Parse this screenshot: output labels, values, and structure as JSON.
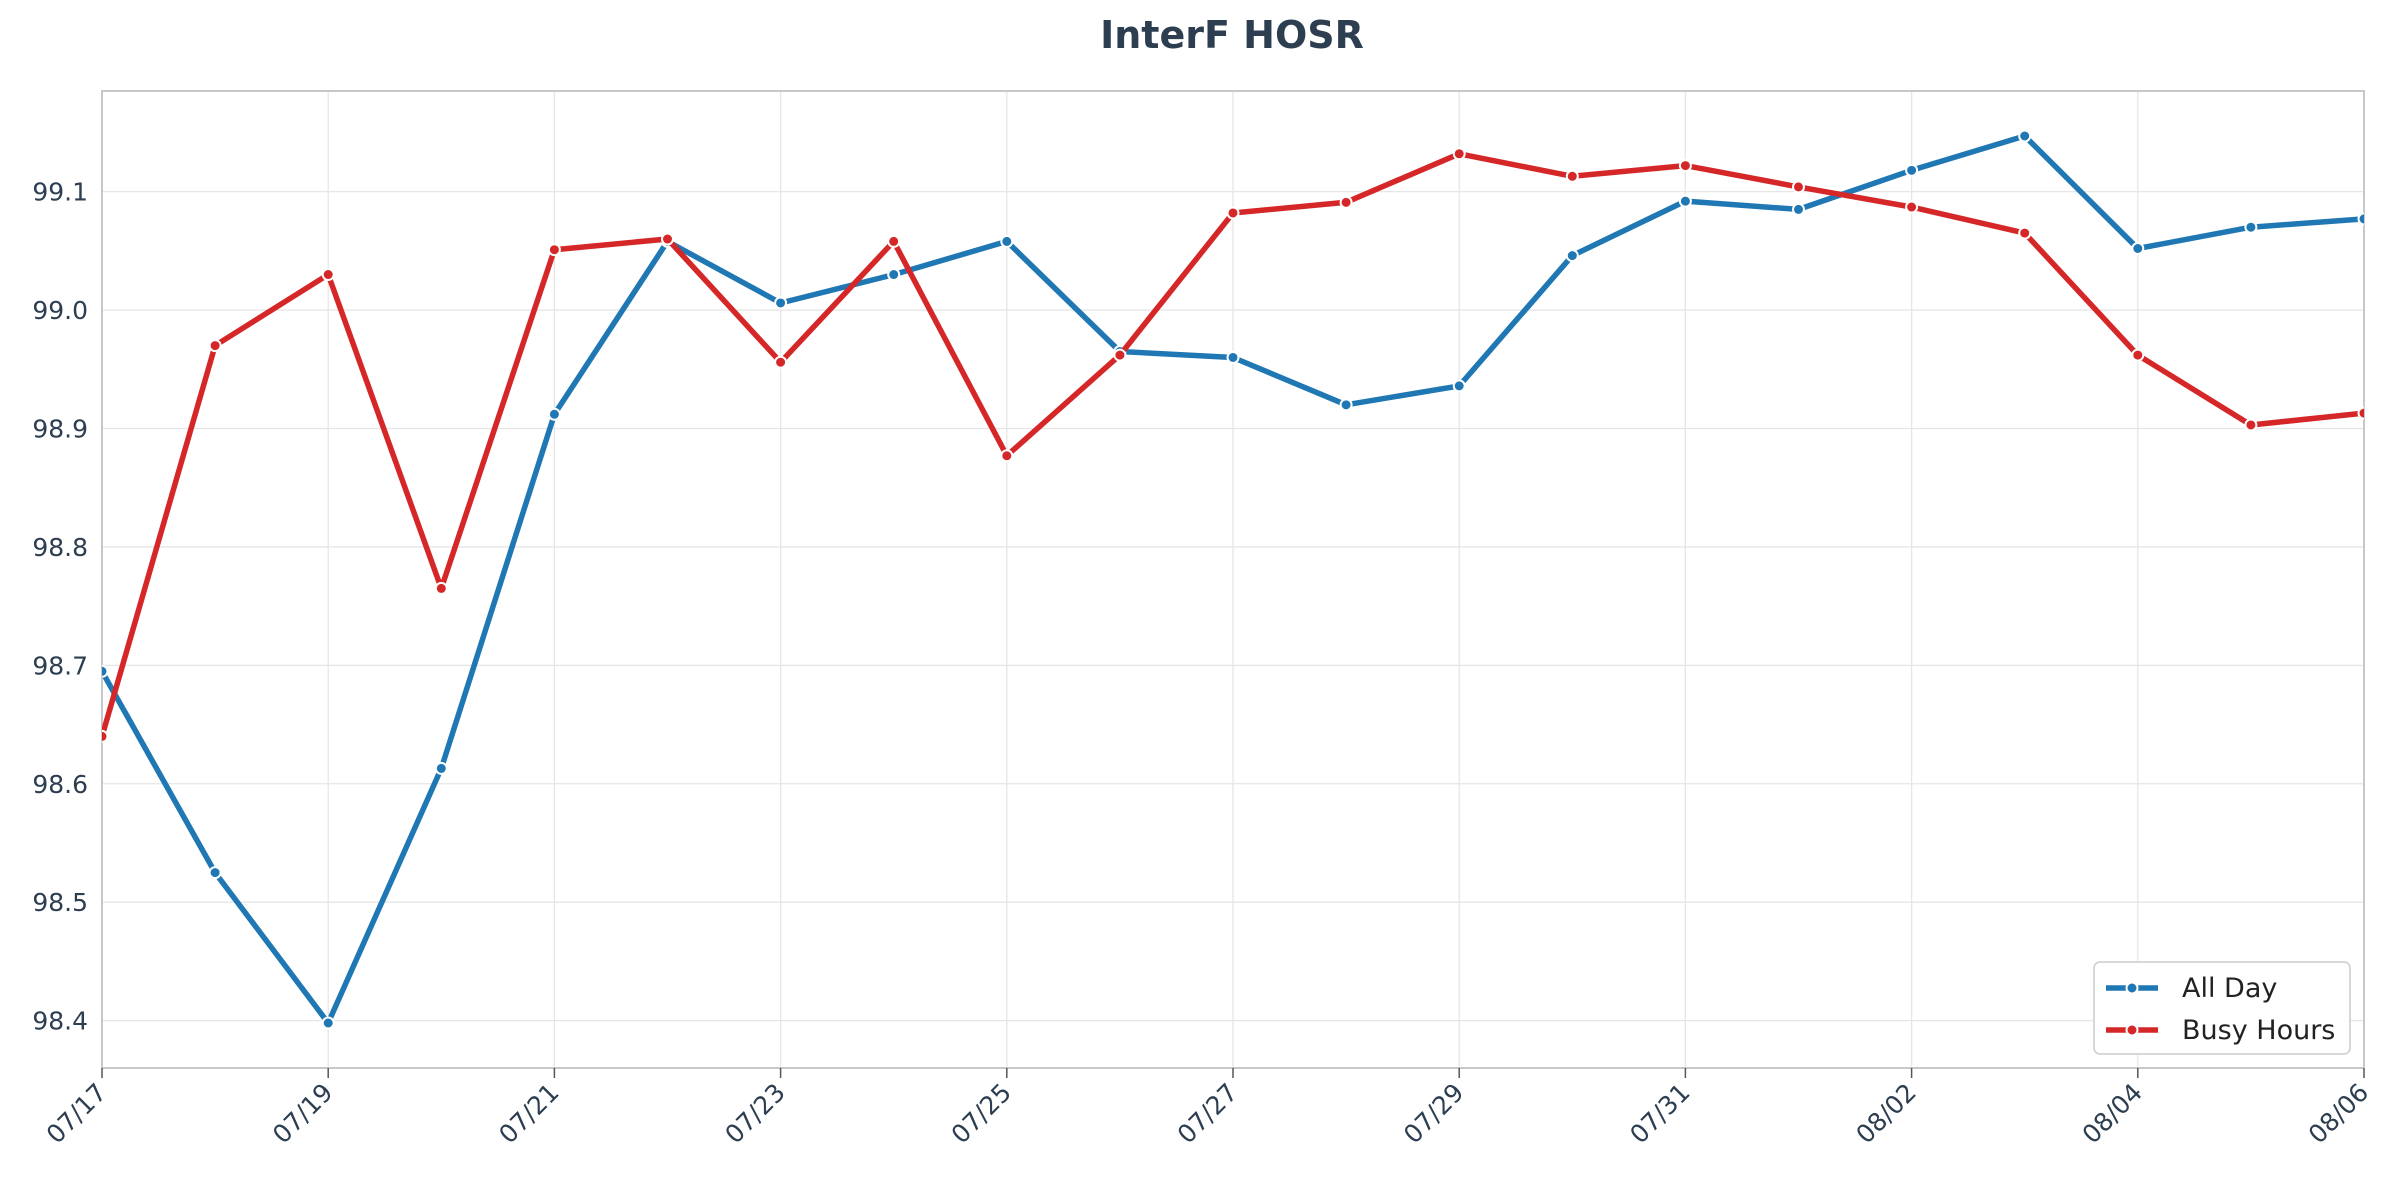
{
  "chart_data": {
    "type": "line",
    "title": "InterF HOSR",
    "xlabel": "",
    "ylabel": "",
    "x": [
      "07/17",
      "07/18",
      "07/19",
      "07/20",
      "07/21",
      "07/22",
      "07/23",
      "07/24",
      "07/25",
      "07/26",
      "07/27",
      "07/28",
      "07/29",
      "07/30",
      "07/31",
      "08/01",
      "08/02",
      "08/03",
      "08/04",
      "08/05",
      "08/06"
    ],
    "x_tick_labels": [
      "07/17",
      "07/19",
      "07/21",
      "07/23",
      "07/25",
      "07/27",
      "07/29",
      "07/31",
      "08/02",
      "08/04",
      "08/06"
    ],
    "y_ticks": [
      "98.4",
      "98.5",
      "98.6",
      "98.7",
      "98.8",
      "98.9",
      "99.0",
      "99.1"
    ],
    "ylim": [
      98.36,
      99.185
    ],
    "grid": true,
    "legend_position": "bottom-right",
    "series": [
      {
        "name": "All Day",
        "color": "#1f77b4",
        "values": [
          98.695,
          98.525,
          98.398,
          98.613,
          98.912,
          99.058,
          99.006,
          99.03,
          99.058,
          98.965,
          98.96,
          98.92,
          98.936,
          99.046,
          99.092,
          99.085,
          99.118,
          99.147,
          99.052,
          99.07,
          99.077
        ]
      },
      {
        "name": "Busy Hours",
        "color": "#d62728",
        "values": [
          98.64,
          98.97,
          99.03,
          98.765,
          99.051,
          99.06,
          98.956,
          99.058,
          98.877,
          98.962,
          99.082,
          99.091,
          99.132,
          99.113,
          99.122,
          99.104,
          99.087,
          99.065,
          98.962,
          98.903,
          98.913
        ]
      }
    ]
  }
}
